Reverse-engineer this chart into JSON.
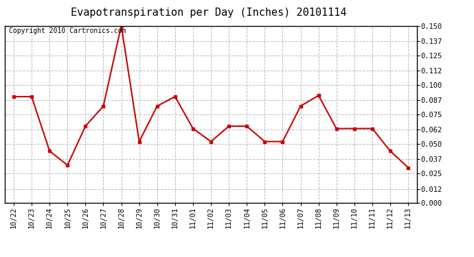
{
  "title": "Evapotranspiration per Day (Inches) 20101114",
  "copyright_text": "Copyright 2010 Cartronics.com",
  "line_color": "#cc0000",
  "marker_color": "#cc0000",
  "bg_color": "#ffffff",
  "grid_color": "#bbbbbb",
  "categories": [
    "10/22",
    "10/23",
    "10/24",
    "10/25",
    "10/26",
    "10/27",
    "10/28",
    "10/29",
    "10/30",
    "10/31",
    "11/01",
    "11/02",
    "11/03",
    "11/04",
    "11/05",
    "11/06",
    "11/07",
    "11/08",
    "11/09",
    "11/10",
    "11/11",
    "11/12",
    "11/13"
  ],
  "values": [
    0.09,
    0.09,
    0.044,
    0.032,
    0.065,
    0.082,
    0.15,
    0.052,
    0.082,
    0.09,
    0.063,
    0.052,
    0.065,
    0.065,
    0.052,
    0.052,
    0.082,
    0.091,
    0.063,
    0.063,
    0.063,
    0.044,
    0.03
  ],
  "ylim": [
    0.0,
    0.15
  ],
  "yticks": [
    0.0,
    0.012,
    0.025,
    0.037,
    0.05,
    0.062,
    0.075,
    0.087,
    0.1,
    0.112,
    0.125,
    0.137,
    0.15
  ],
  "title_fontsize": 11,
  "copyright_fontsize": 7,
  "tick_fontsize": 7.5,
  "linewidth": 1.5,
  "markersize": 3.0
}
